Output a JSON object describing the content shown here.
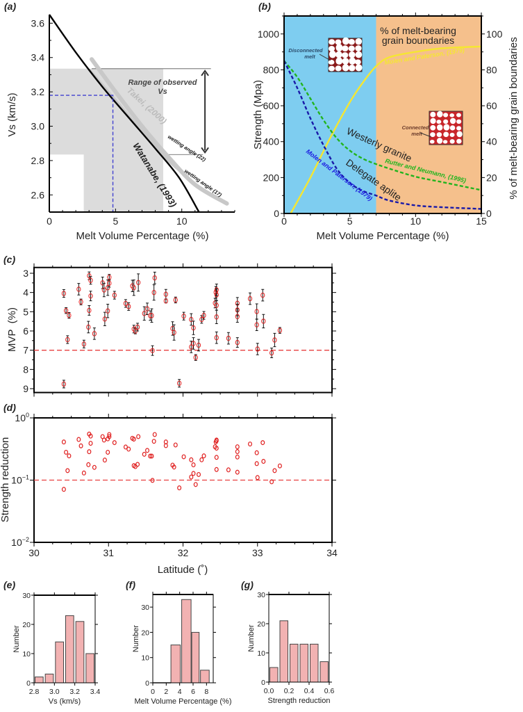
{
  "panel_labels": {
    "a": "(a)",
    "b": "(b)",
    "c": "(c)",
    "d": "(d)",
    "e": "(e)",
    "f": "(f)",
    "g": "(g)"
  },
  "chart_data": [
    {
      "id": "a",
      "type": "line",
      "xlabel": "Melt Volume Percentage (%)",
      "ylabel": "Vs (km/s)",
      "xlim": [
        0,
        14
      ],
      "ylim": [
        2.5,
        3.65
      ],
      "xticks": [
        0,
        5,
        10
      ],
      "yticks": [
        2.6,
        2.8,
        3.0,
        3.2,
        3.4,
        3.6
      ],
      "series": [
        {
          "name": "Watanabe, (1993)",
          "color": "#000000",
          "x": [
            0,
            2,
            4,
            6,
            8,
            9.8,
            11.3
          ],
          "y": [
            3.65,
            3.43,
            3.23,
            3.05,
            2.87,
            2.7,
            2.5
          ]
        },
        {
          "name": "Takei, (2000)",
          "color": "#c8c8c8",
          "x": [
            3.2,
            5,
            7,
            9,
            11,
            13.4
          ],
          "y": [
            3.39,
            3.2,
            3.0,
            2.82,
            2.66,
            2.55
          ]
        }
      ],
      "observed_vs_range": [
        2.835,
        3.335
      ],
      "shaded_mvp_range": [
        2.6,
        8.6
      ],
      "example_vs": 3.18,
      "example_mvp": 4.8,
      "annotations": {
        "range_line1": "Range of observed",
        "range_line2": "Vs",
        "wetting22": "wetting angle (22)",
        "wetting17": "wetting angle (17)"
      }
    },
    {
      "id": "b",
      "type": "line",
      "xlabel": "Melt Volume Percentage (%)",
      "ylabel": "Strength (Mpa)",
      "ylabel_right": "% of melt-bearing grain boundaries",
      "xlim": [
        0,
        15
      ],
      "ylim": [
        0,
        1100
      ],
      "ylim_right": [
        0,
        110
      ],
      "xticks": [
        0,
        5,
        10,
        15
      ],
      "yticks": [
        0,
        200,
        400,
        600,
        800,
        1000
      ],
      "yticks_right": [
        0,
        20,
        40,
        60,
        80,
        100
      ],
      "regions": [
        {
          "from": 0,
          "to": 7,
          "color": "#7ecdf0"
        },
        {
          "from": 7,
          "to": 15,
          "color": "#f5c08c"
        }
      ],
      "series": [
        {
          "name": "Molen and Paterson, (1979)",
          "axis": "right",
          "color": "#f5e632",
          "x": [
            0.5,
            2,
            3.5,
            5,
            6,
            7,
            8,
            10,
            12,
            15
          ],
          "y": [
            0,
            20,
            42,
            62,
            73,
            82,
            87,
            90,
            92,
            93
          ]
        },
        {
          "name": "Rutter and Neumann, (1995)",
          "axis": "left",
          "color": "#22b41e",
          "dashed": true,
          "x": [
            0,
            1,
            2,
            3,
            4,
            5,
            6,
            7,
            8,
            10,
            12,
            15
          ],
          "y": [
            850,
            760,
            640,
            520,
            420,
            350,
            305,
            275,
            250,
            205,
            175,
            130
          ]
        },
        {
          "name": "Molen and Paterson, (1979)",
          "axis": "left",
          "color": "#1a1aa8",
          "dashed": true,
          "x": [
            0,
            1,
            2,
            3,
            4,
            5,
            6,
            7,
            8,
            10,
            12,
            15
          ],
          "y": [
            850,
            700,
            530,
            380,
            250,
            170,
            125,
            100,
            72,
            45,
            35,
            25
          ]
        }
      ],
      "annotations": {
        "mbgb_line1": "% of melt-bearing",
        "mbgb_line2": "grain boundaries",
        "disconnected1": "Disconnected",
        "disconnected2": "melt",
        "connected1": "Connected",
        "connected2": "melt",
        "westerly": "Westerly granite",
        "delegate": "Delegate aplite"
      }
    },
    {
      "id": "c",
      "type": "scatter",
      "ylabel": "MVP  (%)",
      "xlim": [
        30,
        34
      ],
      "ylim": [
        9.2,
        2.7
      ],
      "y_inverted": true,
      "yticks": [
        3,
        4,
        5,
        6,
        7,
        8,
        9
      ],
      "reference_line": 7,
      "marker_color": "#e02020",
      "errorbar_color": "#111111",
      "points": [
        [
          30.4,
          4.05,
          0.2
        ],
        [
          30.4,
          8.76,
          0.2
        ],
        [
          30.43,
          4.94,
          0.15
        ],
        [
          30.47,
          5.19,
          0.15
        ],
        [
          30.45,
          6.45,
          0.2
        ],
        [
          30.6,
          3.83,
          0.3
        ],
        [
          30.63,
          4.49,
          0.15
        ],
        [
          30.67,
          6.68,
          0.2
        ],
        [
          30.73,
          5.8,
          0.3
        ],
        [
          30.74,
          3.13,
          0.2
        ],
        [
          30.76,
          3.37,
          0.2
        ],
        [
          30.76,
          4.18,
          0.25
        ],
        [
          30.74,
          4.93,
          0.25
        ],
        [
          30.81,
          6.14,
          0.3
        ],
        [
          30.92,
          3.5,
          0.3
        ],
        [
          30.94,
          3.87,
          0.35
        ],
        [
          30.95,
          5.38,
          0.35
        ],
        [
          30.99,
          3.75,
          0.4
        ],
        [
          30.99,
          4.96,
          0.35
        ],
        [
          31.01,
          3.52,
          0.2
        ],
        [
          31.01,
          3.21,
          0.15
        ],
        [
          31.08,
          4.14,
          0.2
        ],
        [
          31.23,
          4.57,
          0.2
        ],
        [
          31.27,
          4.73,
          0.2
        ],
        [
          31.32,
          3.66,
          0.3
        ],
        [
          31.34,
          3.75,
          0.4
        ],
        [
          31.4,
          3.48,
          0.45
        ],
        [
          31.34,
          5.9,
          0.2
        ],
        [
          31.36,
          6.0,
          0.15
        ],
        [
          31.39,
          5.8,
          0.2
        ],
        [
          31.48,
          5.09,
          0.35
        ],
        [
          31.52,
          4.85,
          0.3
        ],
        [
          31.56,
          5.2,
          0.25
        ],
        [
          31.58,
          5.2,
          0.35
        ],
        [
          31.59,
          7.02,
          0.25
        ],
        [
          31.61,
          4.0,
          0.4
        ],
        [
          31.62,
          3.24,
          0.3
        ],
        [
          31.77,
          4.09,
          0.25
        ],
        [
          31.77,
          4.44,
          0.1
        ],
        [
          31.86,
          5.87,
          0.35
        ],
        [
          31.88,
          6.08,
          0.4
        ],
        [
          31.9,
          4.39,
          0.15
        ],
        [
          31.95,
          8.72,
          0.2
        ],
        [
          32.01,
          5.23,
          0.2
        ],
        [
          32.11,
          5.4,
          0.3
        ],
        [
          32.11,
          6.83,
          0.3
        ],
        [
          32.14,
          5.84,
          0.35
        ],
        [
          32.14,
          6.65,
          0.3
        ],
        [
          32.17,
          7.38,
          0.15
        ],
        [
          32.21,
          6.74,
          0.3
        ],
        [
          32.25,
          5.4,
          0.2
        ],
        [
          32.28,
          5.19,
          0.2
        ],
        [
          32.43,
          4.55,
          0.25
        ],
        [
          32.44,
          3.99,
          0.3
        ],
        [
          32.45,
          3.86,
          0.3
        ],
        [
          32.45,
          4.12,
          0.3
        ],
        [
          32.45,
          4.67,
          0.25
        ],
        [
          32.45,
          5.27,
          0.35
        ],
        [
          32.45,
          6.35,
          0.3
        ],
        [
          32.61,
          6.38,
          0.3
        ],
        [
          32.73,
          4.56,
          0.3
        ],
        [
          32.73,
          4.91,
          0.3
        ],
        [
          32.73,
          5.25,
          0.3
        ],
        [
          32.73,
          6.6,
          0.25
        ],
        [
          32.9,
          4.32,
          0.3
        ],
        [
          32.99,
          4.99,
          0.4
        ],
        [
          32.99,
          5.68,
          0.3
        ],
        [
          33.0,
          6.94,
          0.3
        ],
        [
          33.07,
          4.14,
          0.3
        ],
        [
          33.08,
          5.49,
          0.35
        ],
        [
          33.19,
          7.14,
          0.25
        ],
        [
          33.23,
          6.47,
          0.35
        ],
        [
          33.3,
          5.97,
          0.15
        ]
      ]
    },
    {
      "id": "d",
      "type": "scatter",
      "xlabel": "Latitude (˚)",
      "ylabel": "Strength reduction",
      "xlim": [
        30,
        34
      ],
      "ylim": [
        0.01,
        1
      ],
      "yscale": "log",
      "xticks": [
        "30",
        "31",
        "32",
        "33",
        "34"
      ],
      "yticks": [
        {
          "base": "10",
          "exp": "0"
        },
        {
          "base": "10",
          "exp": "−1"
        },
        {
          "base": "10",
          "exp": "−2"
        }
      ],
      "reference_line": 0.1,
      "marker_color": "#e02020",
      "points": [
        [
          30.4,
          0.41
        ],
        [
          30.4,
          0.071
        ],
        [
          30.43,
          0.28
        ],
        [
          30.47,
          0.245
        ],
        [
          30.45,
          0.142
        ],
        [
          30.6,
          0.45
        ],
        [
          30.63,
          0.355
        ],
        [
          30.67,
          0.13
        ],
        [
          30.73,
          0.177
        ],
        [
          30.74,
          0.55
        ],
        [
          30.76,
          0.51
        ],
        [
          30.76,
          0.39
        ],
        [
          30.74,
          0.286
        ],
        [
          30.81,
          0.16
        ],
        [
          30.92,
          0.5
        ],
        [
          30.94,
          0.44
        ],
        [
          30.95,
          0.21
        ],
        [
          30.99,
          0.46
        ],
        [
          30.99,
          0.28
        ],
        [
          31.01,
          0.5
        ],
        [
          31.01,
          0.54
        ],
        [
          31.08,
          0.4
        ],
        [
          31.23,
          0.34
        ],
        [
          31.27,
          0.315
        ],
        [
          31.32,
          0.47
        ],
        [
          31.34,
          0.455
        ],
        [
          31.4,
          0.5
        ],
        [
          31.34,
          0.171
        ],
        [
          31.36,
          0.165
        ],
        [
          31.39,
          0.179
        ],
        [
          31.48,
          0.26
        ],
        [
          31.52,
          0.3
        ],
        [
          31.56,
          0.243
        ],
        [
          31.58,
          0.243
        ],
        [
          31.59,
          0.099
        ],
        [
          31.61,
          0.42
        ],
        [
          31.62,
          0.54
        ],
        [
          31.77,
          0.41
        ],
        [
          31.77,
          0.358
        ],
        [
          31.86,
          0.174
        ],
        [
          31.88,
          0.162
        ],
        [
          31.9,
          0.367
        ],
        [
          31.95,
          0.075
        ],
        [
          32.01,
          0.237
        ],
        [
          32.11,
          0.212
        ],
        [
          32.11,
          0.112
        ],
        [
          32.14,
          0.176
        ],
        [
          32.14,
          0.128
        ],
        [
          32.17,
          0.085
        ],
        [
          32.21,
          0.123
        ],
        [
          32.25,
          0.212
        ],
        [
          32.28,
          0.245
        ],
        [
          32.43,
          0.343
        ],
        [
          32.44,
          0.41
        ],
        [
          32.45,
          0.44
        ],
        [
          32.45,
          0.43
        ],
        [
          32.45,
          0.326
        ],
        [
          32.45,
          0.232
        ],
        [
          32.45,
          0.148
        ],
        [
          32.61,
          0.146
        ],
        [
          32.73,
          0.343
        ],
        [
          32.73,
          0.287
        ],
        [
          32.73,
          0.235
        ],
        [
          32.73,
          0.134
        ],
        [
          32.9,
          0.38
        ],
        [
          32.99,
          0.275
        ],
        [
          32.99,
          0.184
        ],
        [
          33.0,
          0.11
        ],
        [
          33.07,
          0.4
        ],
        [
          33.08,
          0.2
        ],
        [
          33.19,
          0.094
        ],
        [
          33.23,
          0.142
        ],
        [
          33.3,
          0.169
        ]
      ]
    },
    {
      "id": "e",
      "type": "bar",
      "xlabel": "Vs (km/s)",
      "ylabel": "Number",
      "xlim": [
        2.8,
        3.4
      ],
      "ylim": [
        0,
        30
      ],
      "xticks": [
        "2.8",
        "3.0",
        "3.2",
        "3.4"
      ],
      "yticks": [
        0,
        10,
        20,
        30
      ],
      "bins": [
        [
          2.8,
          2.9
        ],
        [
          2.9,
          3.0
        ],
        [
          3.0,
          3.1
        ],
        [
          3.1,
          3.2
        ],
        [
          3.2,
          3.3
        ],
        [
          3.3,
          3.4
        ]
      ],
      "values": [
        2,
        3,
        14,
        23,
        21,
        10
      ],
      "color": "#f2b2b2"
    },
    {
      "id": "f",
      "type": "bar",
      "xlabel": "Melt Volume Percentage (%)",
      "ylabel": "Number",
      "xlim": [
        0,
        9
      ],
      "ylim": [
        0,
        35
      ],
      "xticks": [
        "0",
        "2",
        "4",
        "6",
        "8"
      ],
      "yticks": [
        0,
        10,
        20,
        30
      ],
      "bins": [
        [
          2.7,
          4.1
        ],
        [
          4.3,
          5.7
        ],
        [
          5.8,
          6.9
        ],
        [
          7.1,
          8.4
        ]
      ],
      "values": [
        15,
        33,
        20,
        5
      ],
      "color": "#f2b2b2"
    },
    {
      "id": "g",
      "type": "bar",
      "xlabel": "Strength reduction",
      "ylabel": "Number",
      "xlim": [
        0,
        0.6
      ],
      "ylim": [
        0,
        30
      ],
      "xticks": [
        "0.0",
        "0.2",
        "0.4",
        "0.6"
      ],
      "yticks": [
        0,
        10,
        20,
        30
      ],
      "bins": [
        [
          0,
          0.1
        ],
        [
          0.1,
          0.2
        ],
        [
          0.2,
          0.3
        ],
        [
          0.3,
          0.4
        ],
        [
          0.4,
          0.5
        ],
        [
          0.5,
          0.6
        ]
      ],
      "values": [
        5,
        21,
        13,
        13,
        13,
        7
      ],
      "color": "#f2b2b2"
    }
  ]
}
